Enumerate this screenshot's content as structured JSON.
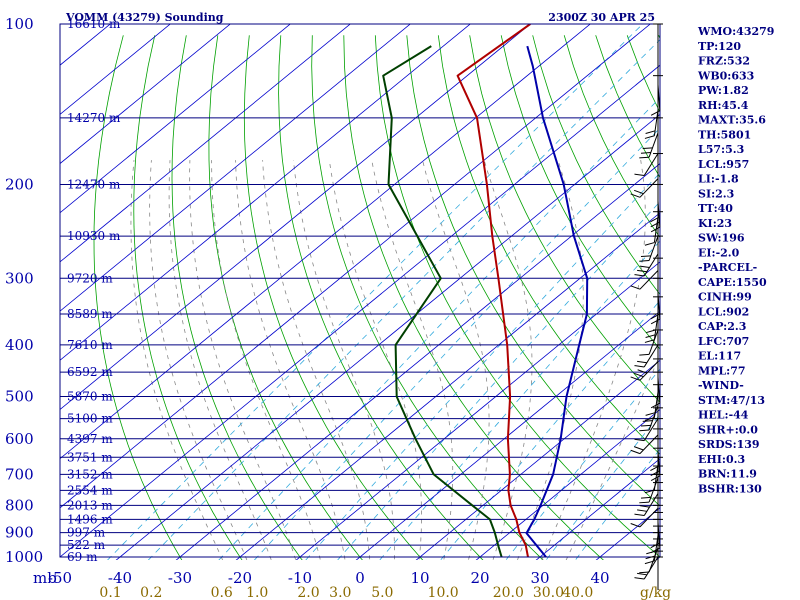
{
  "header": {
    "station": "VOMM (43279) Sounding",
    "time": "2300Z 30 APR 25"
  },
  "chart_data": {
    "type": "line",
    "diagram": "skew-t log-p",
    "pressure_levels": [
      100,
      200,
      300,
      400,
      500,
      600,
      700,
      800,
      900,
      1000
    ],
    "pressure_unit": "mb",
    "ylim": [
      1000,
      100
    ],
    "temperature_ticks": [
      -50,
      -40,
      -30,
      -20,
      -10,
      0,
      10,
      20,
      30,
      40
    ],
    "xlim": [
      -50,
      50
    ],
    "mixing_ratio_ticks": [
      "0.1",
      "0.2",
      "0.6",
      "1.0",
      "2.0",
      "3.0",
      "5.0",
      "10.0",
      "20.0",
      "30.0",
      "40.0"
    ],
    "mixing_ratio_unit": "g/kg",
    "heights": [
      {
        "p": 100,
        "label": "16610 m"
      },
      {
        "p": 150,
        "label": "14270 m"
      },
      {
        "p": 200,
        "label": "12470 m"
      },
      {
        "p": 250,
        "label": "10930 m"
      },
      {
        "p": 300,
        "label": "9720 m"
      },
      {
        "p": 350,
        "label": "8589 m"
      },
      {
        "p": 400,
        "label": "7610 m"
      },
      {
        "p": 450,
        "label": "6592 m"
      },
      {
        "p": 500,
        "label": "5870 m"
      },
      {
        "p": 550,
        "label": "5100 m"
      },
      {
        "p": 600,
        "label": "4397 m"
      },
      {
        "p": 650,
        "label": "3751 m"
      },
      {
        "p": 700,
        "label": "3152 m"
      },
      {
        "p": 750,
        "label": "2554 m"
      },
      {
        "p": 800,
        "label": "2013 m"
      },
      {
        "p": 850,
        "label": "1496 m"
      },
      {
        "p": 900,
        "label": "997 m"
      },
      {
        "p": 950,
        "label": "522 m"
      },
      {
        "p": 1000,
        "label": "69 m"
      }
    ],
    "series": [
      {
        "kind": "temperature",
        "color": "#b00000",
        "points": [
          [
            1000,
            28
          ],
          [
            950,
            25.2
          ],
          [
            900,
            21.6
          ],
          [
            850,
            18.4
          ],
          [
            800,
            14.6
          ],
          [
            750,
            11.2
          ],
          [
            700,
            8.2
          ],
          [
            600,
            0.6
          ],
          [
            500,
            -7.6
          ],
          [
            400,
            -18.6
          ],
          [
            300,
            -33.6
          ],
          [
            250,
            -43.2
          ],
          [
            200,
            -54.6
          ],
          [
            150,
            -69.8
          ],
          [
            125,
            -81.6
          ],
          [
            100,
            -80
          ]
        ]
      },
      {
        "kind": "dewpoint",
        "color": "#004000",
        "points": [
          [
            1000,
            23.6
          ],
          [
            950,
            20.6
          ],
          [
            900,
            17.5
          ],
          [
            850,
            14
          ],
          [
            800,
            8.2
          ],
          [
            700,
            -4.5
          ],
          [
            600,
            -14.8
          ],
          [
            500,
            -26.5
          ],
          [
            400,
            -37.2
          ],
          [
            300,
            -43.2
          ],
          [
            200,
            -71
          ],
          [
            150,
            -84
          ],
          [
            125,
            -94
          ],
          [
            110,
            -92
          ]
        ]
      },
      {
        "kind": "parcel",
        "color": "#0000aa",
        "points": [
          [
            1000,
            31
          ],
          [
            970,
            28.6
          ],
          [
            902,
            22.9
          ],
          [
            850,
            21.4
          ],
          [
            800,
            19.6
          ],
          [
            700,
            15.4
          ],
          [
            600,
            9.4
          ],
          [
            500,
            1.8
          ],
          [
            400,
            -6.6
          ],
          [
            350,
            -11.6
          ],
          [
            300,
            -18.8
          ],
          [
            250,
            -29.6
          ],
          [
            200,
            -41.8
          ],
          [
            150,
            -58.8
          ],
          [
            120,
            -71
          ],
          [
            110,
            -76
          ]
        ]
      }
    ]
  },
  "indices": {
    "items": [
      "WMO:43279",
      "TP:120",
      "FRZ:532",
      "WB0:633",
      "PW:1.82",
      "RH:45.4",
      "MAXT:35.6",
      "TH:5801",
      "L57:5.3",
      "LCL:957",
      "LI:-1.8",
      "SI:2.3",
      "TT:40",
      "KI:23",
      "SW:196",
      "EI:-2.0",
      "-PARCEL-",
      "CAPE:1550",
      "CINH:99",
      "LCL:902",
      "CAP:2.3",
      "LFC:707",
      "EL:117",
      "MPL:77",
      "-WIND-",
      "STM:47/13",
      "HEL:-44",
      "SHR+:0.0",
      "SRDS:139",
      "EHI:0.3",
      "BRN:11.9",
      "BSHR:130"
    ]
  },
  "colors": {
    "isobar": "#000080",
    "isotherm": "#0000cc",
    "dry_adiabat": "#00a000",
    "moist_adiabat": "#888888",
    "mixing_ratio": "#33aadd",
    "wind_barb": "#000000"
  }
}
